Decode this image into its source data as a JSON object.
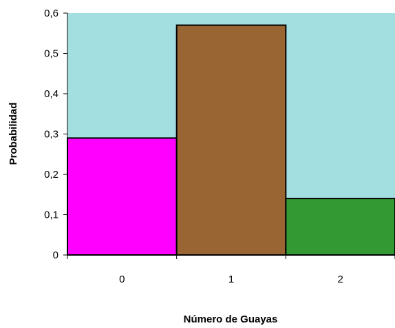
{
  "chart_data": {
    "type": "bar",
    "title": "",
    "xlabel": "Número de Guayas",
    "ylabel": "Probabilidad",
    "categories": [
      "0",
      "1",
      "2"
    ],
    "values": [
      0.29,
      0.57,
      0.14
    ],
    "ylim": [
      0,
      0.6
    ],
    "yticks": [
      "0",
      "0,1",
      "0,2",
      "0,3",
      "0,4",
      "0,5",
      "0,6"
    ],
    "grid": false,
    "legend": "none",
    "bar_colors": [
      "#ff00ff",
      "#996633",
      "#339933"
    ],
    "plot_background": "#a3dfe0",
    "bar_edge_color": "#000000"
  }
}
